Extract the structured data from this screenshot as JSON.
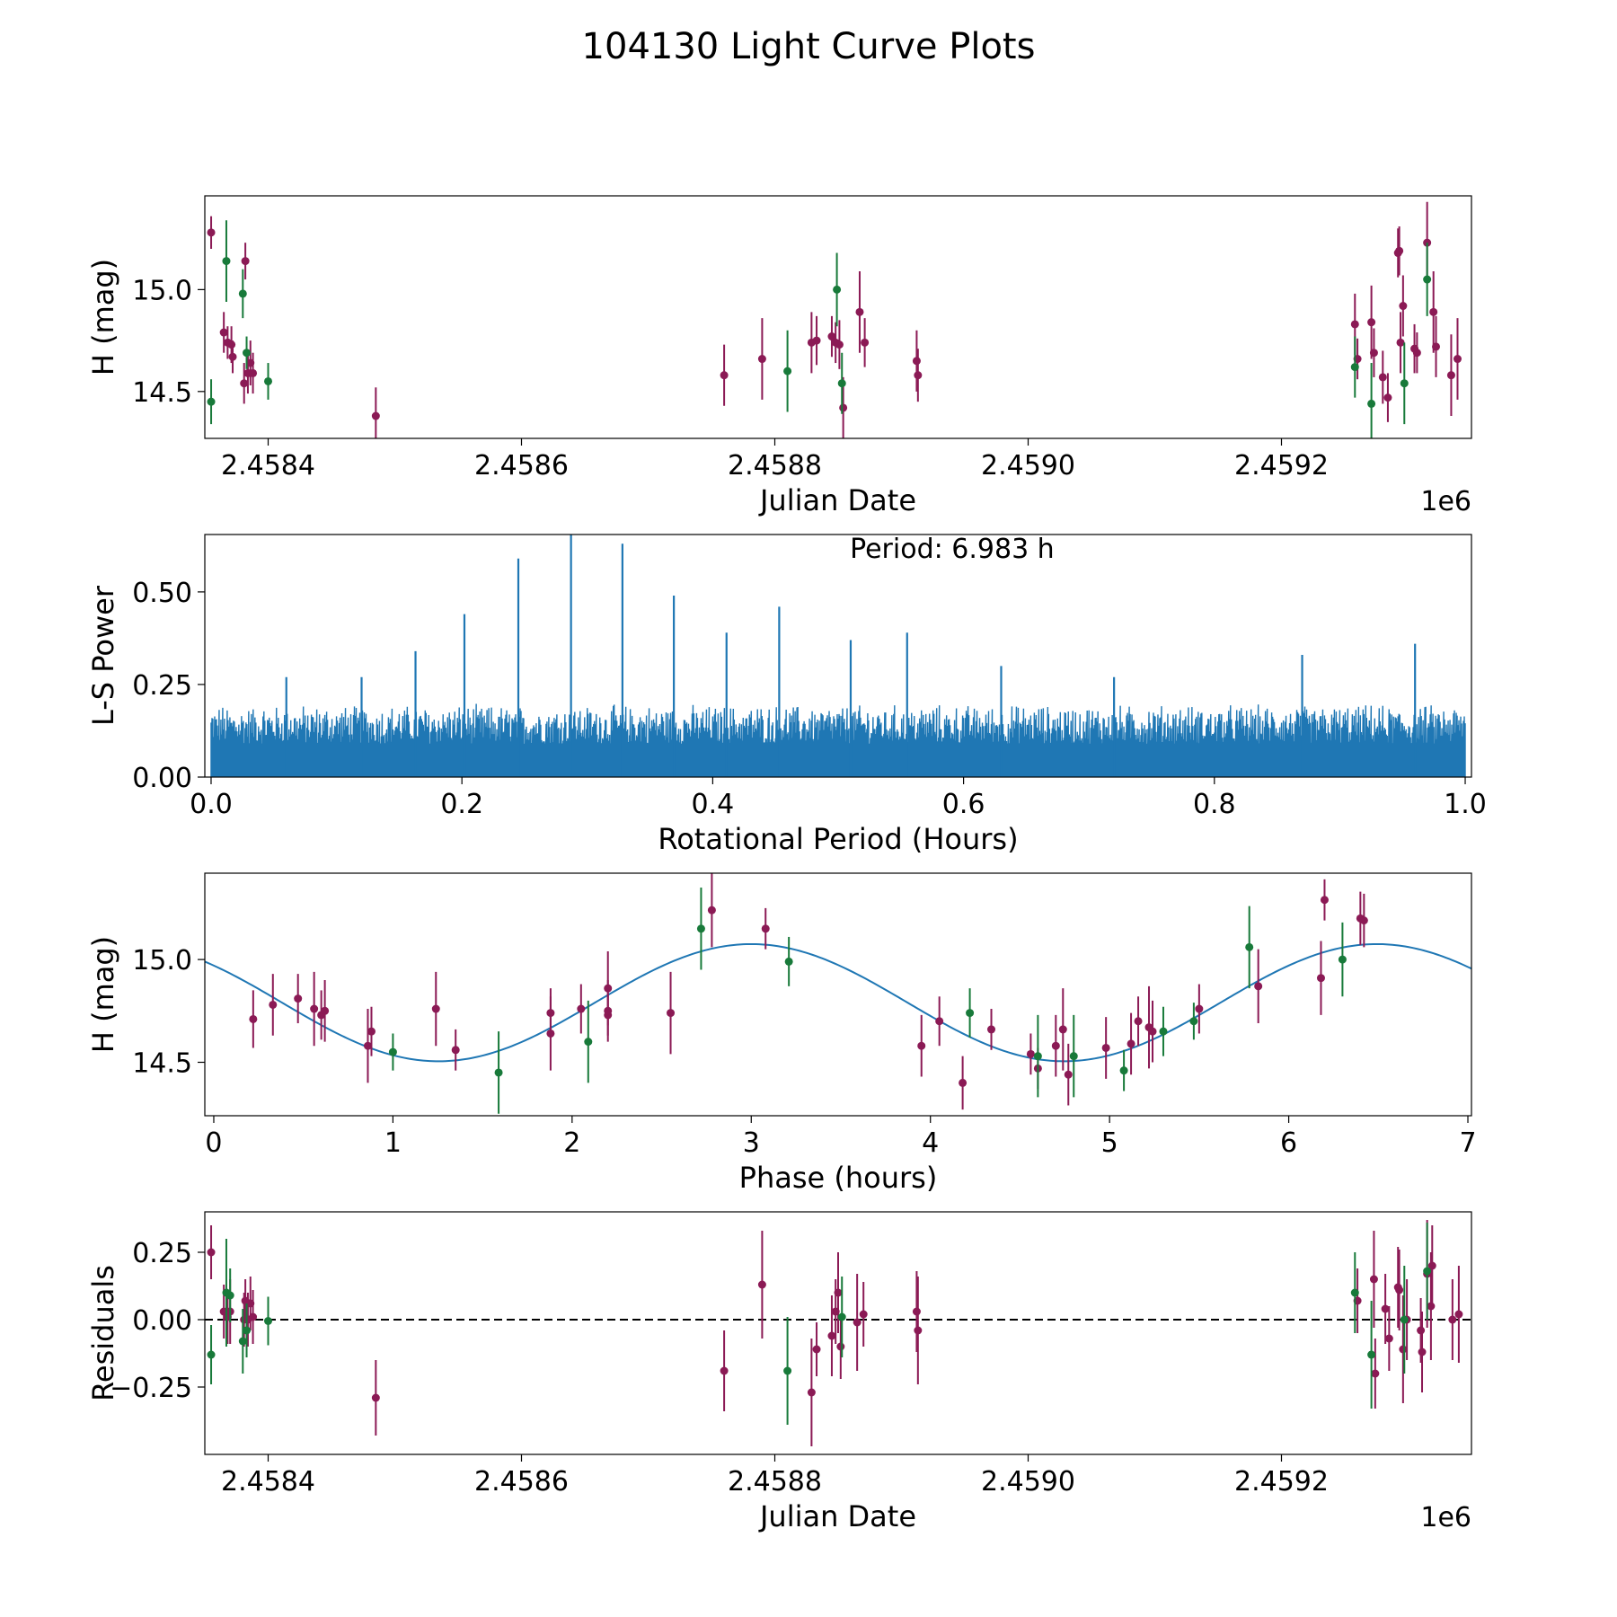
{
  "figure": {
    "title": "104130 Light Curve Plots"
  },
  "colors": {
    "red_band": "#8B1A55",
    "green_band": "#187A3A",
    "curve": "#1F77B4",
    "axes": "#000000"
  },
  "chart_data": [
    {
      "id": "lc",
      "type": "scatter",
      "title": "",
      "xlabel": "Julian Date",
      "ylabel": "H (mag)",
      "xlim": [
        2458350,
        2459350
      ],
      "ylim": [
        14.27,
        15.46
      ],
      "y_inverted": false,
      "offset_label": "1e6",
      "xticks": [
        2458400,
        2458600,
        2458800,
        2459000,
        2459200
      ],
      "xtick_labels": [
        "2.4584",
        "2.4586",
        "2.4588",
        "2.4590",
        "2.4592"
      ],
      "yticks": [
        14.5,
        15.0
      ],
      "ytick_labels": [
        "14.5",
        "15.0"
      ],
      "series": [
        {
          "name": "r",
          "color": "red_band",
          "points": [
            [
              2458355,
              15.28,
              0.08
            ],
            [
              2458365,
              14.79,
              0.1
            ],
            [
              2458368,
              14.74,
              0.08
            ],
            [
              2458371,
              14.73,
              0.09
            ],
            [
              2458372,
              14.67,
              0.08
            ],
            [
              2458381,
              14.54,
              0.1
            ],
            [
              2458382,
              15.14,
              0.09
            ],
            [
              2458384,
              14.59,
              0.1
            ],
            [
              2458386,
              14.64,
              0.11
            ],
            [
              2458388,
              14.59,
              0.1
            ],
            [
              2458485,
              14.38,
              0.14
            ],
            [
              2458760,
              14.58,
              0.15
            ],
            [
              2458790,
              14.66,
              0.2
            ],
            [
              2458829,
              14.74,
              0.15
            ],
            [
              2458833,
              14.75,
              0.12
            ],
            [
              2458845,
              14.77,
              0.1
            ],
            [
              2458848,
              14.74,
              0.1
            ],
            [
              2458851,
              14.73,
              0.12
            ],
            [
              2458854,
              14.42,
              0.15
            ],
            [
              2458867,
              14.89,
              0.2
            ],
            [
              2458871,
              14.74,
              0.12
            ],
            [
              2458912,
              14.65,
              0.15
            ],
            [
              2458913,
              14.58,
              0.13
            ],
            [
              2459258,
              14.83,
              0.15
            ],
            [
              2459260,
              14.66,
              0.1
            ],
            [
              2459271,
              14.84,
              0.18
            ],
            [
              2459273,
              14.69,
              0.12
            ],
            [
              2459280,
              14.57,
              0.13
            ],
            [
              2459284,
              14.47,
              0.12
            ],
            [
              2459292,
              15.18,
              0.12
            ],
            [
              2459293,
              15.19,
              0.12
            ],
            [
              2459294,
              14.74,
              0.15
            ],
            [
              2459296,
              14.92,
              0.15
            ],
            [
              2459305,
              14.71,
              0.12
            ],
            [
              2459307,
              14.69,
              0.1
            ],
            [
              2459315,
              15.23,
              0.2
            ],
            [
              2459320,
              14.89,
              0.2
            ],
            [
              2459322,
              14.72,
              0.15
            ],
            [
              2459334,
              14.58,
              0.2
            ],
            [
              2459339,
              14.66,
              0.2
            ]
          ]
        },
        {
          "name": "g",
          "color": "green_band",
          "points": [
            [
              2458355,
              14.45,
              0.11
            ],
            [
              2458367,
              15.14,
              0.2
            ],
            [
              2458380,
              14.98,
              0.12
            ],
            [
              2458383,
              14.69,
              0.08
            ],
            [
              2458400,
              14.55,
              0.09
            ],
            [
              2458810,
              14.6,
              0.2
            ],
            [
              2458849,
              15.0,
              0.18
            ],
            [
              2458853,
              14.54,
              0.15
            ],
            [
              2459258,
              14.62,
              0.15
            ],
            [
              2459271,
              14.44,
              0.2
            ],
            [
              2459297,
              14.54,
              0.2
            ],
            [
              2459315,
              15.05,
              0.18
            ]
          ]
        }
      ]
    },
    {
      "id": "ls",
      "type": "line",
      "title": "",
      "xlabel": "Rotational Period (Hours)",
      "ylabel": "L-S Power",
      "xlim": [
        -0.005,
        1.005
      ],
      "ylim": [
        0,
        0.655
      ],
      "xticks": [
        0,
        0.2,
        0.4,
        0.6,
        0.8,
        1.0
      ],
      "xtick_labels": [
        "0.0",
        "0.2",
        "0.4",
        "0.6",
        "0.8",
        "1.0"
      ],
      "yticks": [
        0,
        0.25,
        0.5
      ],
      "ytick_labels": [
        "0.00",
        "0.25",
        "0.50"
      ],
      "annotation": "Period: 6.983 h",
      "annotation_position": "top-center",
      "noise_floor": [
        0.09,
        0.2
      ],
      "peaks": [
        [
          0.163,
          0.34
        ],
        [
          0.202,
          0.44
        ],
        [
          0.245,
          0.59
        ],
        [
          0.287,
          0.655
        ],
        [
          0.328,
          0.63
        ],
        [
          0.369,
          0.49
        ],
        [
          0.411,
          0.39
        ],
        [
          0.453,
          0.46
        ],
        [
          0.51,
          0.37
        ],
        [
          0.555,
          0.39
        ],
        [
          0.63,
          0.3
        ],
        [
          0.87,
          0.33
        ],
        [
          0.96,
          0.36
        ],
        [
          0.06,
          0.27
        ],
        [
          0.12,
          0.27
        ],
        [
          0.72,
          0.27
        ]
      ]
    },
    {
      "id": "phase",
      "type": "scatter",
      "title": "",
      "xlabel": "Phase (hours)",
      "ylabel": "H (mag)",
      "xlim": [
        -0.05,
        7.02
      ],
      "ylim": [
        14.24,
        15.42
      ],
      "xticks": [
        0,
        1,
        2,
        3,
        4,
        5,
        6,
        7
      ],
      "xtick_labels": [
        "0",
        "1",
        "2",
        "3",
        "4",
        "5",
        "6",
        "7"
      ],
      "yticks": [
        14.5,
        15.0
      ],
      "ytick_labels": [
        "14.5",
        "15.0"
      ],
      "fit": {
        "period_hours": 6.983,
        "amplitude": 0.285,
        "mean": 14.79,
        "peak_phase": 3.0
      },
      "series": [
        {
          "name": "r",
          "color": "red_band",
          "points": [
            [
              0.22,
              14.71,
              0.14
            ],
            [
              0.33,
              14.78,
              0.15
            ],
            [
              0.47,
              14.81,
              0.12
            ],
            [
              0.56,
              14.76,
              0.18
            ],
            [
              0.6,
              14.73,
              0.12
            ],
            [
              0.62,
              14.75,
              0.15
            ],
            [
              0.86,
              14.58,
              0.18
            ],
            [
              0.88,
              14.65,
              0.12
            ],
            [
              1.24,
              14.76,
              0.18
            ],
            [
              1.35,
              14.56,
              0.1
            ],
            [
              1.88,
              14.74,
              0.12
            ],
            [
              1.88,
              14.64,
              0.18
            ],
            [
              2.05,
              14.76,
              0.12
            ],
            [
              2.2,
              14.86,
              0.18
            ],
            [
              2.2,
              14.73,
              0.1
            ],
            [
              2.2,
              14.75,
              0.15
            ],
            [
              2.55,
              14.74,
              0.2
            ],
            [
              2.78,
              15.24,
              0.18
            ],
            [
              3.08,
              15.15,
              0.1
            ],
            [
              3.95,
              14.58,
              0.15
            ],
            [
              4.05,
              14.7,
              0.12
            ],
            [
              4.18,
              14.4,
              0.13
            ],
            [
              4.34,
              14.66,
              0.1
            ],
            [
              4.56,
              14.54,
              0.1
            ],
            [
              4.6,
              14.47,
              0.1
            ],
            [
              4.7,
              14.58,
              0.15
            ],
            [
              4.74,
              14.66,
              0.2
            ],
            [
              4.77,
              14.44,
              0.15
            ],
            [
              4.98,
              14.57,
              0.15
            ],
            [
              5.12,
              14.59,
              0.15
            ],
            [
              5.16,
              14.7,
              0.12
            ],
            [
              5.22,
              14.67,
              0.2
            ],
            [
              5.24,
              14.65,
              0.15
            ],
            [
              5.5,
              14.76,
              0.12
            ],
            [
              5.83,
              14.87,
              0.18
            ],
            [
              6.18,
              14.91,
              0.18
            ],
            [
              6.2,
              15.29,
              0.1
            ],
            [
              6.4,
              15.2,
              0.13
            ],
            [
              6.42,
              15.19,
              0.13
            ]
          ]
        },
        {
          "name": "g",
          "color": "green_band",
          "points": [
            [
              1.0,
              14.55,
              0.09
            ],
            [
              1.59,
              14.45,
              0.2
            ],
            [
              2.09,
              14.6,
              0.2
            ],
            [
              2.72,
              15.15,
              0.2
            ],
            [
              3.21,
              14.99,
              0.12
            ],
            [
              4.22,
              14.74,
              0.12
            ],
            [
              4.6,
              14.53,
              0.2
            ],
            [
              4.8,
              14.53,
              0.2
            ],
            [
              5.08,
              14.46,
              0.1
            ],
            [
              5.3,
              14.65,
              0.12
            ],
            [
              5.47,
              14.7,
              0.09
            ],
            [
              5.78,
              15.06,
              0.2
            ],
            [
              6.3,
              15.0,
              0.18
            ]
          ]
        }
      ]
    },
    {
      "id": "res",
      "type": "scatter",
      "title": "",
      "xlabel": "Julian Date",
      "ylabel": "Residuals",
      "xlim": [
        2458350,
        2459350
      ],
      "ylim": [
        -0.5,
        0.4
      ],
      "offset_label": "1e6",
      "reference_line": 0,
      "xticks": [
        2458400,
        2458600,
        2458800,
        2459000,
        2459200
      ],
      "xtick_labels": [
        "2.4584",
        "2.4586",
        "2.4588",
        "2.4590",
        "2.4592"
      ],
      "yticks": [
        -0.25,
        0.0,
        0.25
      ],
      "ytick_labels": [
        "−0.25",
        "0.00",
        "0.25"
      ],
      "series": [
        {
          "name": "r",
          "color": "red_band",
          "points": [
            [
              2458355,
              0.25,
              0.1
            ],
            [
              2458365,
              0.03,
              0.1
            ],
            [
              2458368,
              0.01,
              0.1
            ],
            [
              2458370,
              0.03,
              0.12
            ],
            [
              2458381,
              0.0,
              0.1
            ],
            [
              2458382,
              0.07,
              0.08
            ],
            [
              2458384,
              0.0,
              0.1
            ],
            [
              2458386,
              0.06,
              0.1
            ],
            [
              2458388,
              0.01,
              0.1
            ],
            [
              2458485,
              -0.29,
              0.14
            ],
            [
              2458760,
              -0.19,
              0.15
            ],
            [
              2458790,
              0.13,
              0.2
            ],
            [
              2458829,
              -0.27,
              0.2
            ],
            [
              2458833,
              -0.11,
              0.1
            ],
            [
              2458845,
              -0.06,
              0.15
            ],
            [
              2458848,
              0.03,
              0.12
            ],
            [
              2458850,
              0.1,
              0.15
            ],
            [
              2458852,
              -0.1,
              0.12
            ],
            [
              2458865,
              -0.01,
              0.18
            ],
            [
              2458870,
              0.02,
              0.12
            ],
            [
              2458912,
              0.03,
              0.15
            ],
            [
              2458913,
              -0.04,
              0.2
            ],
            [
              2459260,
              0.07,
              0.12
            ],
            [
              2459273,
              0.15,
              0.18
            ],
            [
              2459274,
              -0.2,
              0.13
            ],
            [
              2459282,
              0.04,
              0.13
            ],
            [
              2459285,
              -0.07,
              0.12
            ],
            [
              2459292,
              0.12,
              0.15
            ],
            [
              2459293,
              0.11,
              0.15
            ],
            [
              2459296,
              -0.11,
              0.2
            ],
            [
              2459299,
              0.0,
              0.15
            ],
            [
              2459311,
              -0.12,
              0.15
            ],
            [
              2459315,
              0.17,
              0.2
            ],
            [
              2459318,
              0.05,
              0.2
            ],
            [
              2459319,
              0.2,
              0.15
            ],
            [
              2459310,
              -0.04,
              0.12
            ],
            [
              2459335,
              0.0,
              0.15
            ],
            [
              2459340,
              0.02,
              0.18
            ]
          ]
        },
        {
          "name": "g",
          "color": "green_band",
          "points": [
            [
              2458355,
              -0.13,
              0.11
            ],
            [
              2458367,
              0.1,
              0.2
            ],
            [
              2458370,
              0.09,
              0.1
            ],
            [
              2458380,
              -0.08,
              0.12
            ],
            [
              2458383,
              -0.04,
              0.1
            ],
            [
              2458400,
              -0.005,
              0.09
            ],
            [
              2458810,
              -0.19,
              0.2
            ],
            [
              2458853,
              0.01,
              0.15
            ],
            [
              2459258,
              0.1,
              0.15
            ],
            [
              2459271,
              -0.13,
              0.2
            ],
            [
              2459297,
              0.0,
              0.2
            ],
            [
              2459315,
              0.18,
              0.18
            ]
          ]
        }
      ]
    }
  ]
}
